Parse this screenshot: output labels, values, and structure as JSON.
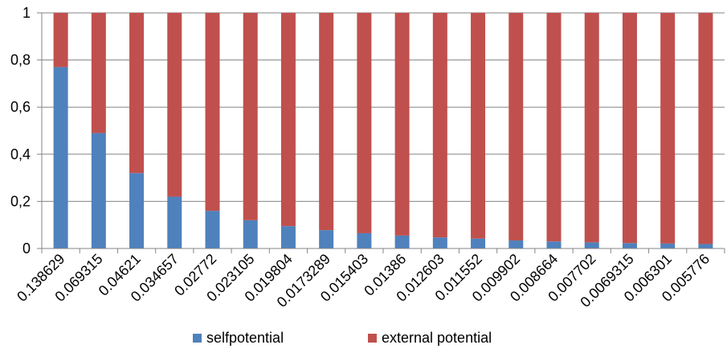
{
  "chart_data": {
    "type": "bar",
    "stacked": true,
    "categories": [
      "0.138629",
      "0.069315",
      "0.04621",
      "0.034657",
      "0.02772",
      "0.023105",
      "0.019804",
      "0.0173289",
      "0.015403",
      "0.01386",
      "0.012603",
      "0.011552",
      "0.009902",
      "0.008664",
      "0.007702",
      "0.0069315",
      "0.006301",
      "0.005776"
    ],
    "series": [
      {
        "name": "selfpotential",
        "color": "#4F81BD",
        "values": [
          0.77,
          0.49,
          0.32,
          0.22,
          0.16,
          0.12,
          0.095,
          0.078,
          0.065,
          0.055,
          0.047,
          0.042,
          0.034,
          0.03,
          0.026,
          0.023,
          0.021,
          0.019
        ]
      },
      {
        "name": "external potential",
        "color": "#C0504D",
        "values": [
          0.23,
          0.51,
          0.68,
          0.78,
          0.84,
          0.88,
          0.905,
          0.922,
          0.935,
          0.945,
          0.953,
          0.958,
          0.966,
          0.97,
          0.974,
          0.977,
          0.979,
          0.981
        ]
      }
    ],
    "y_ticks": [
      "0",
      "0,2",
      "0,4",
      "0,6",
      "0,8",
      "1"
    ],
    "ylim": [
      0,
      1
    ],
    "grid": true,
    "legend_position": "bottom"
  }
}
